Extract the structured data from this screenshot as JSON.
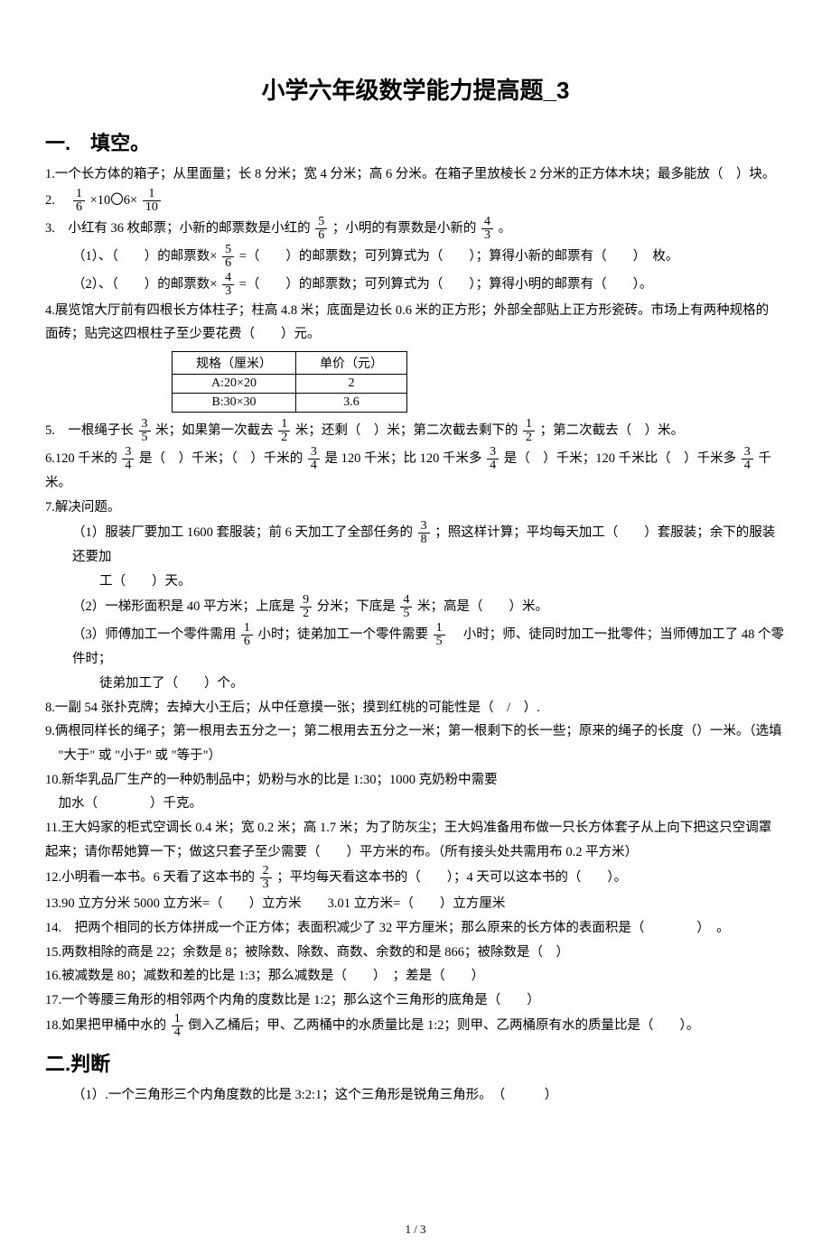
{
  "title": "小学六年级数学能力提高题_3",
  "section1": {
    "heading": "一.　填空。",
    "q1": "1.一个长方体的箱子；从里面量；长 8 分米；宽 4 分米；高 6 分米。在箱子里放棱长 2 分米的正方体木块；最多能放（　）块。",
    "q2_prefix": "2.　",
    "q2_a_num": "1",
    "q2_a_den": "6",
    "q2_mid": " ×10〇6× ",
    "q2_b_num": "1",
    "q2_b_den": "10",
    "q3_prefix": "3.　小红有 36 枚邮票；小新的邮票数是小红的 ",
    "q3_f1_num": "5",
    "q3_f1_den": "6",
    "q3_mid": " ；小明的有票数是小新的 ",
    "q3_f2_num": "4",
    "q3_f2_den": "3",
    "q3_suffix": " 。",
    "q3_1a": "（1）、（　　）的邮票数× ",
    "q3_1_num": "5",
    "q3_1_den": "6",
    "q3_1b": " =（　　）的邮票数；可列算式为（　　）；算得小新的邮票有（　　）　枚。",
    "q3_2a": "（2）、（　　）的邮票数× ",
    "q3_2_num": "4",
    "q3_2_den": "3",
    "q3_2b": " =（　　）的邮票数；可列算式为（　　）；算得小明的邮票有（　　）。",
    "q4a": "4.展览馆大厅前有四根长方体柱子；柱高 4.8 米；底面是边长 0.6 米的正方形；外部全部贴上正方形瓷砖。市场上有两种规格的",
    "q4b": "面砖；贴完这四根柱子至少要花费（　　）元。",
    "table": {
      "h1": "规格（厘米）",
      "h2": "单价（元）",
      "r1c1": "A:20×20",
      "r1c2": "2",
      "r2c1": "B:30×30",
      "r2c2": "3.6"
    },
    "q5a": "5.　一根绳子长 ",
    "q5_f1n": "3",
    "q5_f1d": "5",
    "q5b": " 米；如果第一次截去 ",
    "q5_f2n": "1",
    "q5_f2d": "2",
    "q5c": " 米；还剩（　）米；第二次截去剩下的 ",
    "q5_f3n": "1",
    "q5_f3d": "2",
    "q5d": " ；第二次截去（　）米。",
    "q6a": "6.120 千米的 ",
    "q6_f1n": "3",
    "q6_f1d": "4",
    "q6b": " 是（　）千米；（　）千米的 ",
    "q6_f2n": "3",
    "q6_f2d": "4",
    "q6c": " 是 120 千米；比 120 千米多 ",
    "q6_f3n": "3",
    "q6_f3d": "4",
    "q6d": " 是（　）千米；120 千米比（　）千米多 ",
    "q6_f4n": "3",
    "q6_f4d": "4",
    "q6e": " 千米。",
    "q7": "7.解决问题。",
    "q7_1a": "（1）服装厂要加工 1600 套服装；前 6 天加工了全部任务的 ",
    "q7_1n": "3",
    "q7_1d": "8",
    "q7_1b": " ；照这样计算；平均每天加工（　　）套服装；余下的服装还要加",
    "q7_1c": "工（　　）天。",
    "q7_2a": "（2）一梯形面积是 40 平方米；上底是 ",
    "q7_2f1n": "9",
    "q7_2f1d": "2",
    "q7_2b": " 分米；下底是 ",
    "q7_2f2n": "4",
    "q7_2f2d": "5",
    "q7_2c": " 米；高是（　　）米。",
    "q7_3a": "（3）师傅加工一个零件需用 ",
    "q7_3f1n": "1",
    "q7_3f1d": "6",
    "q7_3b": " 小时；徒弟加工一个零件需要 ",
    "q7_3f2n": "1",
    "q7_3f2d": "5",
    "q7_3c": " 　小时；师、徒同时加工一批零件；当师傅加工了 48 个零件时；",
    "q7_3d": "徒弟加工了（　　）个。",
    "q8": "8.一副 54 张扑克牌；去掉大小王后；从中任意摸一张；摸到红桃的可能性是（　/　）.",
    "q9a": "9.俩根同样长的绳子；第一根用去五分之一；第二根用去五分之一米；第一根剩下的长一些；原来的绳子的长度（）一米。（选填",
    "q9b": "　\"大于\" 或 \"小于\" 或 \"等于\"）",
    "q10a": "10.新华乳品厂生产的一种奶制品中；奶粉与水的比是 1:30；1000 克奶粉中需要",
    "q10b": "　加水（　　　　）千克。",
    "q11a": "11.王大妈家的柜式空调长 0.4 米；宽 0.2 米；高 1.7 米；为了防灰尘；王大妈准备用布做一只长方体套子从上向下把这只空调罩",
    "q11b": "起来；请你帮她算一下；做这只套子至少需要（　　）平方米的布。（所有接头处共需用布 0.2 平方米）",
    "q12a": "12.小明看一本书。6 天看了这本书的 ",
    "q12n": "2",
    "q12d": "3",
    "q12b": " ；平均每天看这本书的（　　）；4 天可以这本书的（　　）。",
    "q13": "13.90 立方分米 5000 立方米=（　　）立方米　　3.01 立方米=（　　）立方厘米",
    "q14": "14.　把两个相同的长方体拼成一个正方体；表面积减少了 32 平方厘米；那么原来的长方体的表面积是（　　　　）　。",
    "q15": "15.两数相除的商是 22；余数是 8；被除数、除数、商数、余数的和是 866；被除数是（　）",
    "q16": "16.被减数是 80；减数和差的比是 1:3；那么减数是（　　）　；差是（　　）",
    "q17": "17.一个等腰三角形的相邻两个内角的度数比是 1:2；那么这个三角形的底角是（　　）",
    "q18a": "18.如果把甲桶中水的 ",
    "q18n": "1",
    "q18d": "4",
    "q18b": " 倒入乙桶后；甲、乙两桶中的水质量比是 1:2；则甲、乙两桶原有水的质量比是（　　）。"
  },
  "section2": {
    "heading": "二.判断",
    "q1": "（1）.一个三角形三个内角度数的比是 3:2:1；这个三角形是锐角三角形。　（　　　）"
  },
  "page_number": "1 / 3"
}
